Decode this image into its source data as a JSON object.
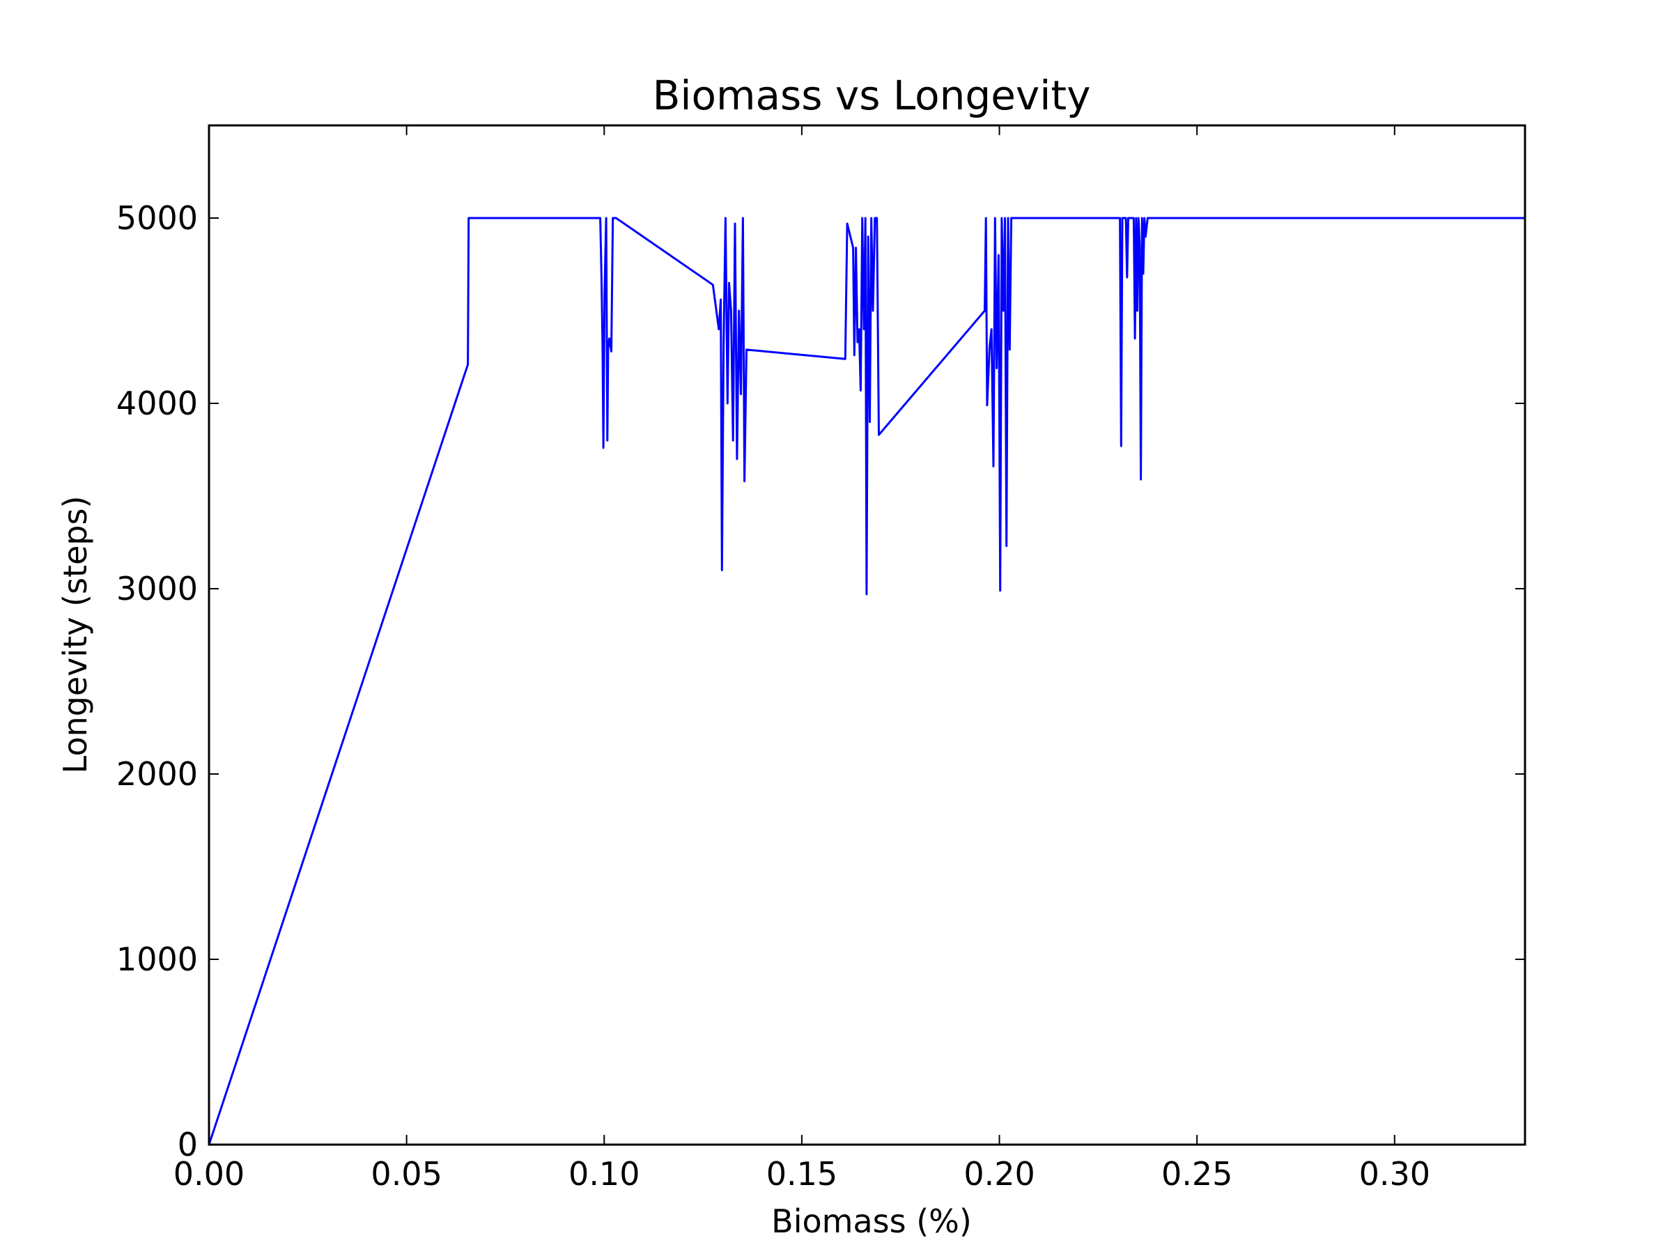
{
  "chart_data": {
    "type": "line",
    "title": "Biomass vs Longevity",
    "xlabel": "Biomass (%)",
    "ylabel": "Longevity (steps)",
    "xlim": [
      0,
      0.333
    ],
    "ylim": [
      0,
      5500
    ],
    "xticks": [
      "0.00",
      "0.05",
      "0.10",
      "0.15",
      "0.20",
      "0.25",
      "0.30"
    ],
    "yticks": [
      "0",
      "1000",
      "2000",
      "3000",
      "4000",
      "5000"
    ],
    "grid": false,
    "legend": "none",
    "series": [
      {
        "color": "#0000ff",
        "x": [
          0.0,
          0.0655,
          0.0657,
          0.099,
          0.0993,
          0.0996,
          0.0998,
          0.1001,
          0.1005,
          0.1008,
          0.101,
          0.1013,
          0.1018,
          0.1022,
          0.103,
          0.1275,
          0.129,
          0.1295,
          0.1298,
          0.1302,
          0.1307,
          0.1312,
          0.1316,
          0.1321,
          0.1326,
          0.1331,
          0.1336,
          0.1341,
          0.1346,
          0.1351,
          0.1355,
          0.136,
          0.161,
          0.1615,
          0.163,
          0.1633,
          0.1637,
          0.1641,
          0.1645,
          0.1649,
          0.1653,
          0.1657,
          0.1661,
          0.1664,
          0.1668,
          0.1672,
          0.1676,
          0.168,
          0.1685,
          0.169,
          0.1695,
          0.1963,
          0.1966,
          0.1969,
          0.1975,
          0.198,
          0.1985,
          0.1989,
          0.1993,
          0.1998,
          0.2002,
          0.2006,
          0.201,
          0.2014,
          0.2018,
          0.2022,
          0.2026,
          0.203,
          0.2035,
          0.2305,
          0.2308,
          0.2311,
          0.232,
          0.2323,
          0.2326,
          0.234,
          0.2343,
          0.2346,
          0.2349,
          0.2352,
          0.2355,
          0.2358,
          0.2361,
          0.2364,
          0.2367,
          0.237,
          0.2375,
          0.333
        ],
        "y": [
          0,
          4210,
          5000,
          5000,
          4700,
          4290,
          3760,
          4600,
          5000,
          3800,
          4300,
          4350,
          4280,
          5000,
          5000,
          4640,
          4400,
          4560,
          3100,
          4300,
          5000,
          4000,
          4650,
          4500,
          3800,
          4970,
          3700,
          4500,
          4050,
          5000,
          3580,
          4290,
          4240,
          4970,
          4840,
          4260,
          4840,
          4330,
          4400,
          4070,
          5000,
          4400,
          5000,
          2970,
          4900,
          3900,
          5000,
          4500,
          5000,
          5000,
          3830,
          4500,
          5000,
          3990,
          4300,
          4400,
          3660,
          5000,
          4190,
          4800,
          2990,
          5000,
          4500,
          5000,
          3230,
          5000,
          4290,
          5000,
          5000,
          5000,
          3770,
          5000,
          5000,
          4680,
          5000,
          5000,
          4350,
          5000,
          4500,
          5000,
          4850,
          3590,
          5000,
          4700,
          5000,
          4900,
          5000,
          5000
        ]
      }
    ]
  }
}
